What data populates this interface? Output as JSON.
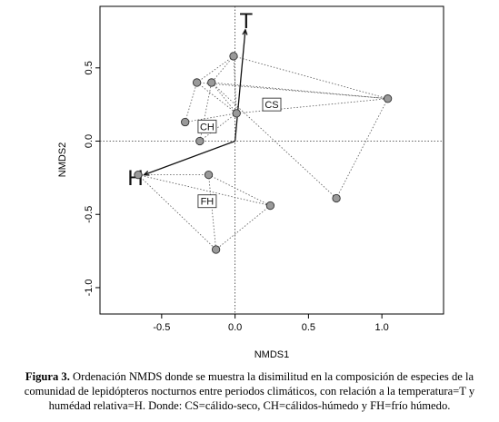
{
  "chart_data": {
    "type": "scatter",
    "title": "",
    "xlabel": "NMDS1",
    "ylabel": "NMDS2",
    "xlim": [
      -0.92,
      1.42
    ],
    "ylim": [
      -1.18,
      0.92
    ],
    "xticks": [
      -0.5,
      0.0,
      0.5,
      1.0
    ],
    "xtick_labels": [
      "-0.5",
      "0.0",
      "0.5",
      "1.0"
    ],
    "yticks": [
      -1.0,
      -0.5,
      0.0,
      0.5
    ],
    "ytick_labels": [
      "-1.0",
      "-0.5",
      "0.0",
      "0.5"
    ],
    "reference_lines": {
      "x": 0,
      "y": 0,
      "style": "dotted"
    },
    "points": [
      {
        "x": -0.01,
        "y": 0.58
      },
      {
        "x": -0.26,
        "y": 0.4
      },
      {
        "x": -0.16,
        "y": 0.4
      },
      {
        "x": 1.04,
        "y": 0.29
      },
      {
        "x": -0.34,
        "y": 0.13
      },
      {
        "x": 0.01,
        "y": 0.19
      },
      {
        "x": -0.24,
        "y": 0.0
      },
      {
        "x": -0.66,
        "y": -0.23
      },
      {
        "x": -0.18,
        "y": -0.23
      },
      {
        "x": 0.69,
        "y": -0.39
      },
      {
        "x": 0.24,
        "y": -0.44
      },
      {
        "x": -0.13,
        "y": -0.74
      }
    ],
    "groups": [
      {
        "label": "CS",
        "label_pos": {
          "x": 0.25,
          "y": 0.25
        },
        "hull": [
          0,
          3,
          9,
          5,
          1
        ]
      },
      {
        "label": "CH",
        "label_pos": {
          "x": -0.19,
          "y": 0.1
        },
        "hull": [
          1,
          2,
          5,
          6,
          4
        ]
      },
      {
        "label": "FH",
        "label_pos": {
          "x": -0.19,
          "y": -0.41
        },
        "hull": [
          7,
          8,
          10,
          11
        ]
      }
    ],
    "spider_links": [
      [
        0,
        1
      ],
      [
        0,
        2
      ],
      [
        0,
        5
      ],
      [
        0,
        3
      ],
      [
        1,
        5
      ],
      [
        1,
        3
      ],
      [
        2,
        3
      ],
      [
        2,
        5
      ],
      [
        5,
        3
      ],
      [
        3,
        9
      ],
      [
        2,
        9
      ],
      [
        4,
        5
      ],
      [
        6,
        5
      ],
      [
        4,
        1
      ],
      [
        6,
        2
      ],
      [
        7,
        8
      ],
      [
        7,
        10
      ],
      [
        8,
        10
      ],
      [
        8,
        11
      ],
      [
        10,
        11
      ],
      [
        7,
        11
      ]
    ],
    "vectors": [
      {
        "label": "T",
        "x": 0.07,
        "y": 0.76
      },
      {
        "label": "H",
        "x": -0.62,
        "y": -0.23
      }
    ]
  },
  "caption": {
    "figure_label": "Figura 3.",
    "text": "Ordenación NMDS donde se muestra la disimilitud en la composición de especies de la comunidad de lepidópteros nocturnos entre periodos climáticos, con relación a la temperatura=T y humédad relativa=H. Donde: CS=cálido-seco, CH=cálidos-húmedo y FH=frío húmedo."
  }
}
